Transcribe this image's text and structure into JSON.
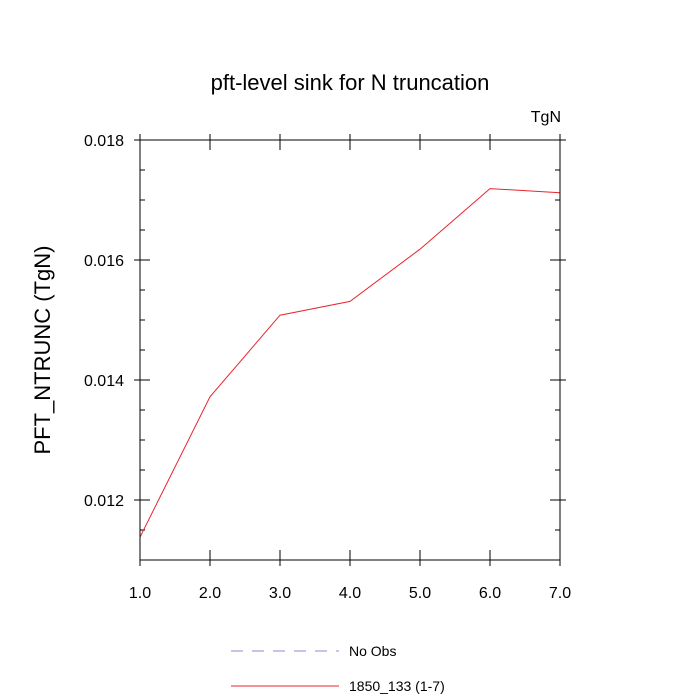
{
  "chart_data": {
    "type": "line",
    "title": "pft-level sink for N truncation",
    "units_label": "TgN",
    "xlabel": "",
    "ylabel": "PFT_NTRUNC  (TgN)",
    "x": [
      1,
      2,
      3,
      4,
      5,
      6,
      7
    ],
    "xlim": [
      1,
      7
    ],
    "ylim": [
      0.011,
      0.018
    ],
    "x_ticks": [
      1,
      2,
      3,
      4,
      5,
      6,
      7
    ],
    "x_tick_labels": [
      "1.0",
      "2.0",
      "3.0",
      "4.0",
      "5.0",
      "6.0",
      "7.0"
    ],
    "y_ticks": [
      0.012,
      0.014,
      0.016,
      0.018
    ],
    "y_tick_labels": [
      "0.012",
      "0.014",
      "0.016",
      "0.018"
    ],
    "grid": false,
    "legend_position": "bottom-center",
    "series": [
      {
        "name": "1850_133 (1-7)",
        "color": "#e8242c",
        "dash": "solid",
        "values": [
          0.01138,
          0.01372,
          0.01508,
          0.01531,
          0.01618,
          0.01719,
          0.01712
        ]
      }
    ],
    "legend": [
      {
        "label": "No Obs",
        "color": "#8a8ad8",
        "dash": "dashed"
      },
      {
        "label": "1850_133 (1-7)",
        "color": "#e8242c",
        "dash": "solid"
      }
    ]
  }
}
